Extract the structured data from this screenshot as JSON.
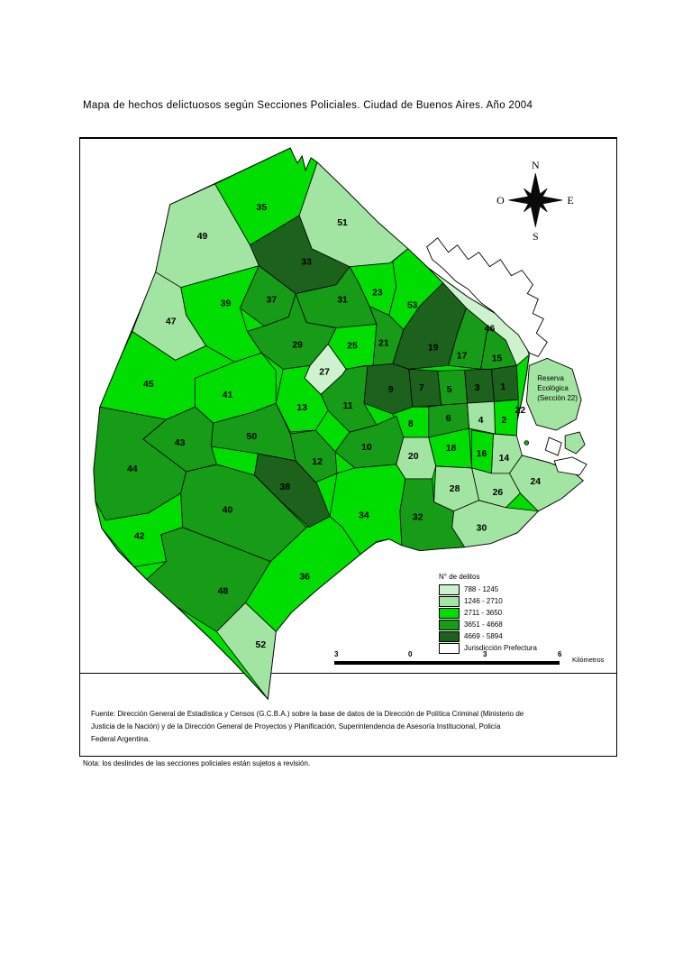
{
  "title": "Mapa de hechos delictuosos según Secciones Policiales. Ciudad de Buenos Aires. Año 2004",
  "compass": {
    "north": "N",
    "south": "S",
    "east": "E",
    "west": "O"
  },
  "legend": {
    "title": "N° de delitos",
    "classes": [
      {
        "label": "788 - 1245",
        "color": "#cdf2cd"
      },
      {
        "label": "1246 - 2710",
        "color": "#a2e5a2"
      },
      {
        "label": "2711 - 3650",
        "color": "#00dd00"
      },
      {
        "label": "3651 - 4668",
        "color": "#169c16"
      },
      {
        "label": "4669 - 5894",
        "color": "#1c611c"
      },
      {
        "label": "Jurisdicción Prefectura",
        "color": "#ffffff"
      }
    ]
  },
  "scalebar": {
    "ticks": [
      "3",
      "0",
      "3",
      "6"
    ],
    "unit": "Kilómetros"
  },
  "reserve_label_lines": [
    "Reserva",
    "Ecológica",
    "(Sección 22)"
  ],
  "channel_section_label": "22",
  "map_sections": [
    {
      "num": "1",
      "range": "4669 - 5894"
    },
    {
      "num": "2",
      "range": "2711 - 3650"
    },
    {
      "num": "3",
      "range": "4669 - 5894"
    },
    {
      "num": "4",
      "range": "1246 - 2710"
    },
    {
      "num": "5",
      "range": "3651 - 4668"
    },
    {
      "num": "6",
      "range": "3651 - 4668"
    },
    {
      "num": "7",
      "range": "4669 - 5894"
    },
    {
      "num": "8",
      "range": "2711 - 3650"
    },
    {
      "num": "9",
      "range": "4669 - 5894"
    },
    {
      "num": "10",
      "range": "3651 - 4668"
    },
    {
      "num": "11",
      "range": "3651 - 4668"
    },
    {
      "num": "12",
      "range": "3651 - 4668"
    },
    {
      "num": "13",
      "range": "2711 - 3650"
    },
    {
      "num": "14",
      "range": "1246 - 2710"
    },
    {
      "num": "15",
      "range": "3651 - 4668"
    },
    {
      "num": "16",
      "range": "2711 - 3650"
    },
    {
      "num": "17",
      "range": "3651 - 4668"
    },
    {
      "num": "18",
      "range": "2711 - 3650"
    },
    {
      "num": "19",
      "range": "4669 - 5894"
    },
    {
      "num": "20",
      "range": "1246 - 2710"
    },
    {
      "num": "21",
      "range": "3651 - 4668"
    },
    {
      "num": "22",
      "range": "1246 - 2710"
    },
    {
      "num": "23",
      "range": "2711 - 3650"
    },
    {
      "num": "24",
      "range": "1246 - 2710"
    },
    {
      "num": "25",
      "range": "2711 - 3650"
    },
    {
      "num": "26",
      "range": "1246 - 2710"
    },
    {
      "num": "27",
      "range": "788 - 1245"
    },
    {
      "num": "28",
      "range": "1246 - 2710"
    },
    {
      "num": "29",
      "range": "3651 - 4668"
    },
    {
      "num": "30",
      "range": "1246 - 2710"
    },
    {
      "num": "31",
      "range": "3651 - 4668"
    },
    {
      "num": "32",
      "range": "3651 - 4668"
    },
    {
      "num": "33",
      "range": "4669 - 5894"
    },
    {
      "num": "34",
      "range": "2711 - 3650"
    },
    {
      "num": "35",
      "range": "2711 - 3650"
    },
    {
      "num": "36",
      "range": "2711 - 3650"
    },
    {
      "num": "37",
      "range": "3651 - 4668"
    },
    {
      "num": "38",
      "range": "4669 - 5894"
    },
    {
      "num": "39",
      "range": "2711 - 3650"
    },
    {
      "num": "40",
      "range": "3651 - 4668"
    },
    {
      "num": "41",
      "range": "2711 - 3650"
    },
    {
      "num": "42",
      "range": "2711 - 3650"
    },
    {
      "num": "43",
      "range": "3651 - 4668"
    },
    {
      "num": "44",
      "range": "3651 - 4668"
    },
    {
      "num": "45",
      "range": "2711 - 3650"
    },
    {
      "num": "46",
      "range": "788 - 1245"
    },
    {
      "num": "47",
      "range": "1246 - 2710"
    },
    {
      "num": "48",
      "range": "3651 - 4668"
    },
    {
      "num": "49",
      "range": "1246 - 2710"
    },
    {
      "num": "50",
      "range": "3651 - 4668"
    },
    {
      "num": "51",
      "range": "1246 - 2710"
    },
    {
      "num": "52",
      "range": "1246 - 2710"
    },
    {
      "num": "53",
      "range": "2711 - 3650"
    }
  ],
  "source_lines": [
    "Fuente: Dirección General de Estadística y Censos (G.C.B.A.) sobre la base de datos de la Dirección de Política Criminal (Ministerio de",
    "Justicia de la Nación) y de la Dirección General de Proyectos y Planificación, Superintendencia de Asesoría Institucional, Policía",
    "Federal Argentina."
  ],
  "note": "Nota: los deslindes de las secciones policiales están sujetos a revisión."
}
